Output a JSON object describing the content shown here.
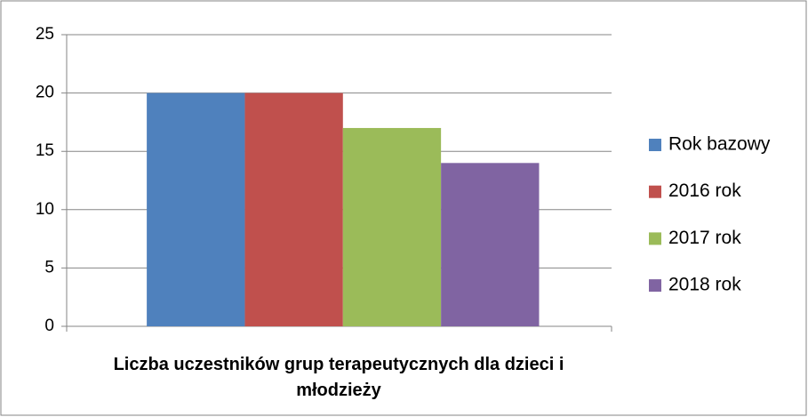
{
  "chart_data": {
    "type": "bar",
    "categories": [
      "Liczba uczestników grup terapeutycznych dla dzieci i młodzieży"
    ],
    "series": [
      {
        "name": "Rok bazowy",
        "color": "#4f81bd",
        "values": [
          20
        ]
      },
      {
        "name": "2016 rok",
        "color": "#c0504d",
        "values": [
          20
        ]
      },
      {
        "name": "2017 rok",
        "color": "#9bbb59",
        "values": [
          17
        ]
      },
      {
        "name": "2018 rok",
        "color": "#8064a2",
        "values": [
          14
        ]
      }
    ],
    "ylim": [
      0,
      25
    ],
    "yticks": [
      0,
      5,
      10,
      15,
      20,
      25
    ],
    "grid": true,
    "legend": "right"
  }
}
